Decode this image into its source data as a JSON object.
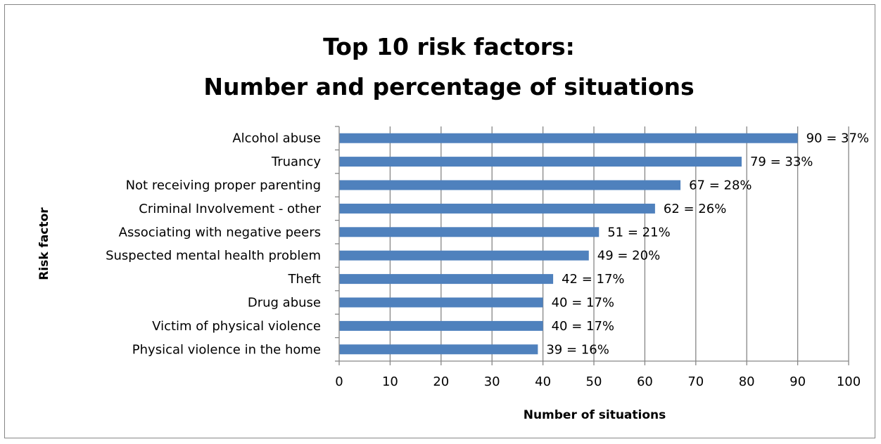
{
  "chart_data": {
    "type": "bar",
    "orientation": "horizontal",
    "title": [
      "Top 10 risk factors:",
      "Number and percentage of situations"
    ],
    "xlabel": "Number of situations",
    "ylabel": "Risk factor",
    "xlim": [
      0,
      100
    ],
    "xticks": [
      "0",
      "10",
      "20",
      "30",
      "40",
      "50",
      "60",
      "70",
      "80",
      "90",
      "100"
    ],
    "grid": true,
    "legend": "none",
    "bar_color": "#4f81bd",
    "categories": [
      "Alcohol abuse",
      "Truancy",
      "Not receiving proper parenting",
      "Criminal Involvement - other",
      "Associating with negative peers",
      "Suspected mental health problem",
      "Theft",
      "Drug abuse",
      "Victim of physical violence",
      "Physical violence in the home"
    ],
    "values": [
      90,
      79,
      67,
      62,
      51,
      49,
      42,
      40,
      40,
      39
    ],
    "data_labels": [
      "90 = 37%",
      "79 = 33%",
      "67 = 28%",
      "62 = 26%",
      "51 = 21%",
      "49 = 20%",
      "42 = 17%",
      "40 = 17%",
      "40 = 17%",
      "39 = 16%"
    ]
  }
}
